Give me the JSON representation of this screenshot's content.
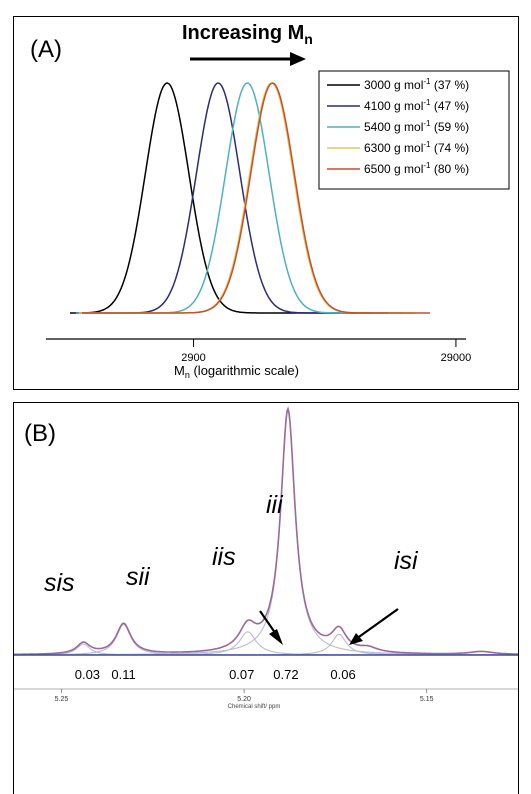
{
  "chart_data": [
    {
      "type": "line",
      "panel_label": "(A)",
      "header": {
        "text": "Increasing M",
        "subscript": "n"
      },
      "xlabel": {
        "text": "M",
        "subscript": "n",
        "suffix": " (logarithmic scale)"
      },
      "x_scale": "log",
      "xlim": [
        600,
        50000
      ],
      "x_ticks": [
        {
          "value": 2900,
          "label": "2900"
        },
        {
          "value": 29000,
          "label": "29000"
        }
      ],
      "legend_position": "top-right",
      "series": [
        {
          "name": "3000 g mol",
          "superscript": "-1",
          "suffix": " (37 %)",
          "color": "#000000",
          "peak_x": 2300
        },
        {
          "name": "4100 g mol",
          "superscript": "-1",
          "suffix": " (47 %)",
          "color": "#2e2c72",
          "peak_x": 3600
        },
        {
          "name": "5400 g mol",
          "superscript": "-1",
          "suffix": " (59 %)",
          "color": "#4fb2c0",
          "peak_x": 4650
        },
        {
          "name": "6300 g mol",
          "superscript": "-1",
          "suffix": " (74 %)",
          "color": "#e9c35a",
          "peak_x": 5750
        },
        {
          "name": "6500 g mol",
          "superscript": "-1",
          "suffix": " (80 %)",
          "color": "#c2502d",
          "peak_x": 5800
        }
      ]
    },
    {
      "type": "line",
      "panel_label": "(B)",
      "xlabel": "Chemical shift/ ppm",
      "x_reversed": true,
      "xlim": [
        5.263,
        5.125
      ],
      "x_ticks": [
        {
          "value": 5.25,
          "label": "5.25"
        },
        {
          "value": 5.2,
          "label": "5.20"
        },
        {
          "value": 5.15,
          "label": "5.15"
        }
      ],
      "peaks": [
        {
          "label": "sis",
          "x": 5.244,
          "integral": "0.03"
        },
        {
          "label": "sii",
          "x": 5.233,
          "integral": "0.11"
        },
        {
          "label": "iis",
          "x": 5.199,
          "integral": "0.07"
        },
        {
          "label": "iii",
          "x": 5.188,
          "integral": "0.72"
        },
        {
          "label": "isi",
          "x": 5.174,
          "integral": "0.06"
        }
      ],
      "colors": {
        "spectrum": "#9a6a9a",
        "fit": "#b7bcd6",
        "baseline": "#3d4aa6"
      }
    }
  ]
}
